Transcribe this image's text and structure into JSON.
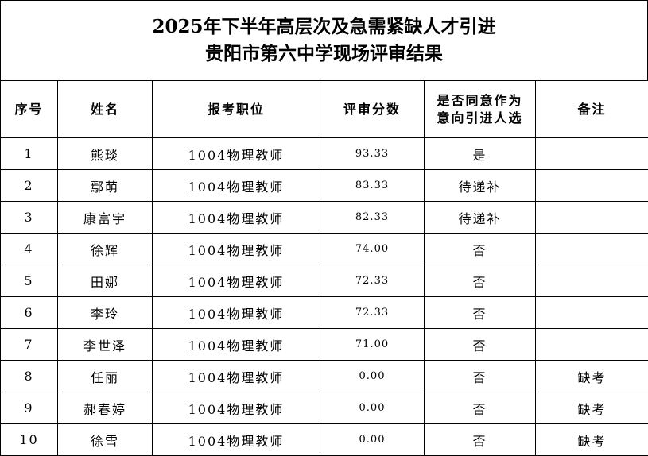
{
  "title": {
    "line1": "2025年下半年高层次及急需紧缺人才引进",
    "line2": "贵阳市第六中学现场评审结果"
  },
  "headers": {
    "no": "序号",
    "name": "姓名",
    "position": "报考职位",
    "score": "评审分数",
    "intent": "是否同意作为意向引进人选",
    "remark": "备注"
  },
  "rows": [
    {
      "no": "1",
      "name": "熊琰",
      "position": "1004物理教师",
      "score": "93.33",
      "intent": "是",
      "remark": ""
    },
    {
      "no": "2",
      "name": "鄢萌",
      "position": "1004物理教师",
      "score": "83.33",
      "intent": "待递补",
      "remark": ""
    },
    {
      "no": "3",
      "name": "康富宇",
      "position": "1004物理教师",
      "score": "82.33",
      "intent": "待递补",
      "remark": ""
    },
    {
      "no": "4",
      "name": "徐辉",
      "position": "1004物理教师",
      "score": "74.00",
      "intent": "否",
      "remark": ""
    },
    {
      "no": "5",
      "name": "田娜",
      "position": "1004物理教师",
      "score": "72.33",
      "intent": "否",
      "remark": ""
    },
    {
      "no": "6",
      "name": "李玲",
      "position": "1004物理教师",
      "score": "72.33",
      "intent": "否",
      "remark": ""
    },
    {
      "no": "7",
      "name": "李世泽",
      "position": "1004物理教师",
      "score": "71.00",
      "intent": "否",
      "remark": ""
    },
    {
      "no": "8",
      "name": "任丽",
      "position": "1004物理教师",
      "score": "0.00",
      "intent": "否",
      "remark": "缺考"
    },
    {
      "no": "9",
      "name": "郝春婷",
      "position": "1004物理教师",
      "score": "0.00",
      "intent": "否",
      "remark": "缺考"
    },
    {
      "no": "10",
      "name": "徐雪",
      "position": "1004物理教师",
      "score": "0.00",
      "intent": "否",
      "remark": "缺考"
    }
  ]
}
